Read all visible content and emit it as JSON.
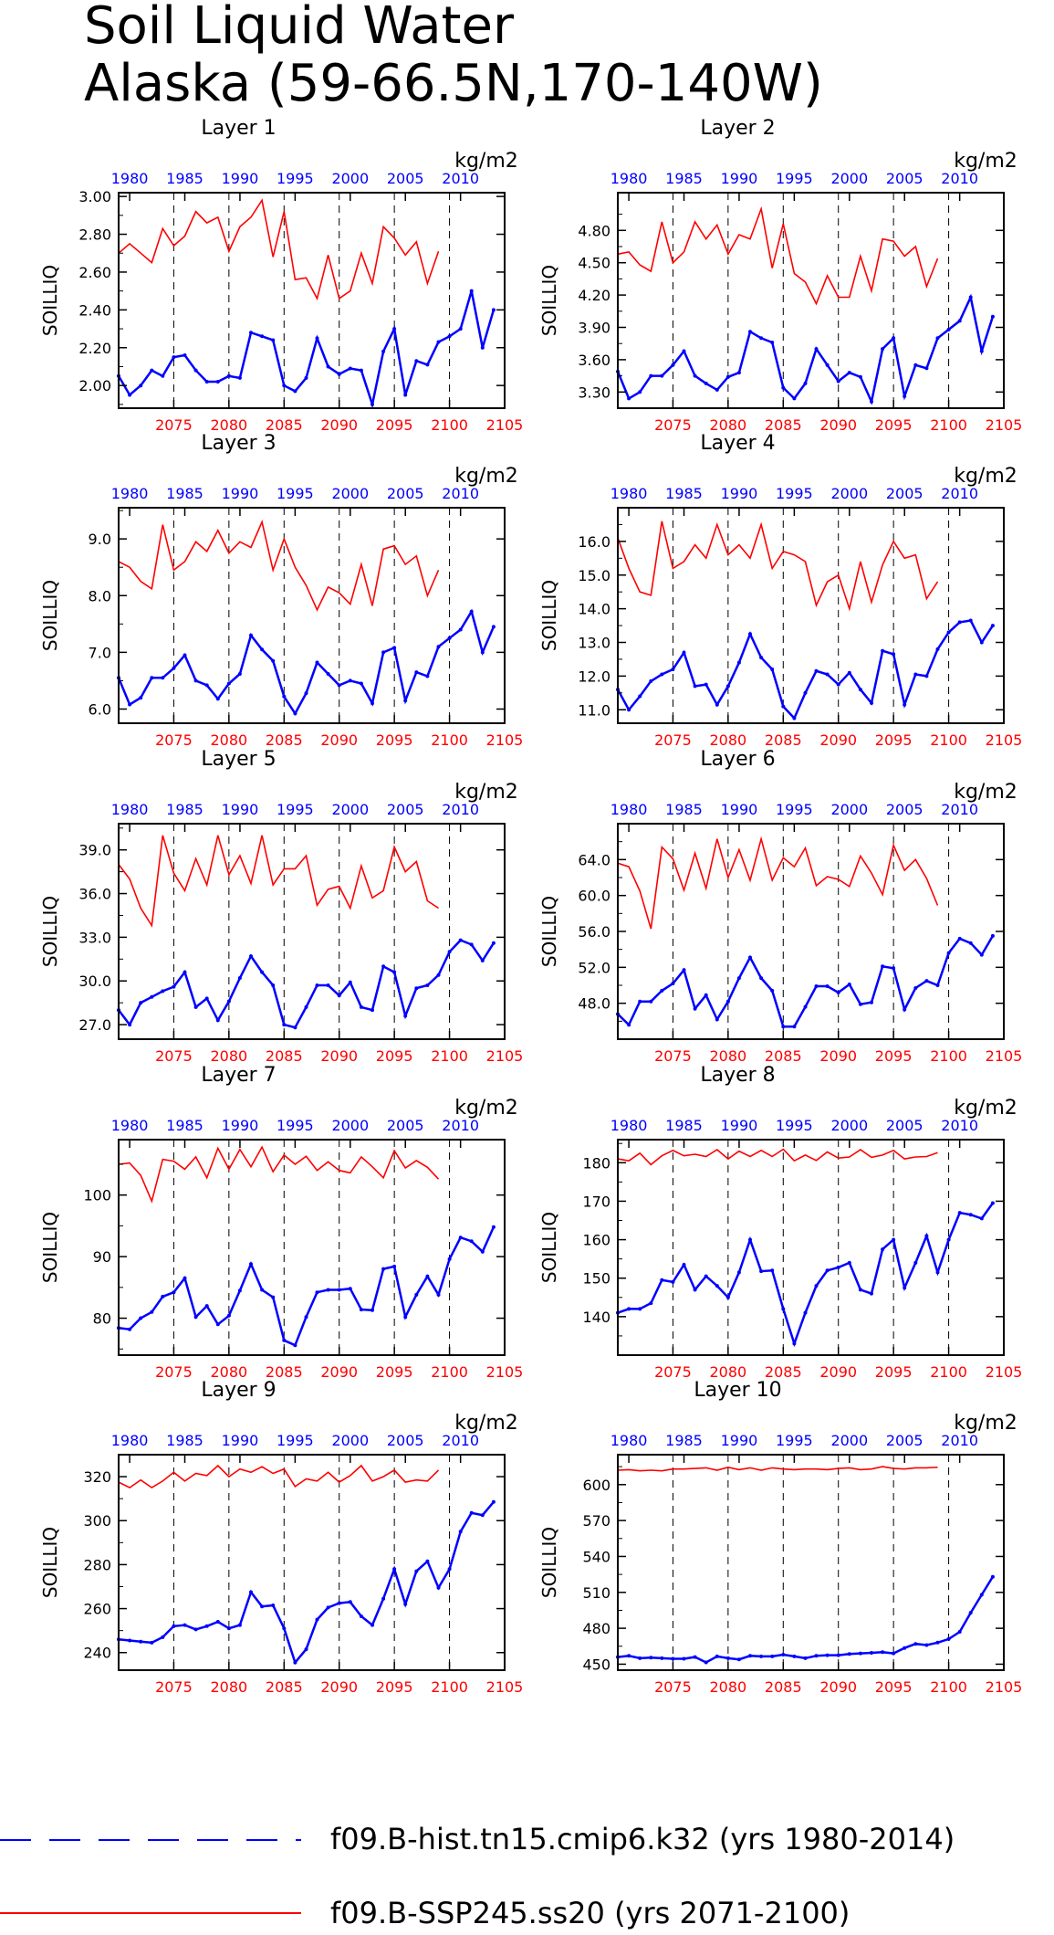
{
  "title": [
    "Soil Liquid Water",
    "Alaska (59-66.5N,170-140W)"
  ],
  "units": "kg/m2",
  "ylabel": "SOILLIQ",
  "colors": {
    "hist": "#0000ff",
    "ssp": "#ff0000",
    "frame": "#000000"
  },
  "top_axis": {
    "range": [
      1979,
      2014
    ],
    "ticks": [
      1980,
      1985,
      1990,
      1995,
      2000,
      2005,
      2010
    ]
  },
  "bottom_axis": {
    "range": [
      2070,
      2105
    ],
    "ticks": [
      2075,
      2080,
      2085,
      2090,
      2095,
      2100,
      2105
    ]
  },
  "legend": [
    {
      "series": "hist",
      "label": "f09.B-hist.tn15.cmip6.k32 (yrs 1980-2014)"
    },
    {
      "series": "ssp",
      "label": "f09.B-SSP245.ss20 (yrs 2071-2100)"
    }
  ],
  "chart_data": [
    {
      "type": "line",
      "title": "Layer 1",
      "ylabel": "SOILLIQ",
      "ylim": [
        1.88,
        3.02
      ],
      "yticks": [
        2.0,
        2.2,
        2.4,
        2.6,
        2.8,
        3.0
      ],
      "yfmt": 2,
      "series": [
        {
          "name": "f09.B-hist.tn15.cmip6.k32 (yrs 1980-2014)",
          "x_axis": "top",
          "x_start": 1979,
          "values": [
            2.05,
            1.95,
            2.0,
            2.08,
            2.05,
            2.15,
            2.16,
            2.08,
            2.02,
            2.02,
            2.05,
            2.04,
            2.28,
            2.26,
            2.24,
            2.0,
            1.97,
            2.04,
            2.25,
            2.1,
            2.06,
            2.09,
            2.08,
            1.9,
            2.18,
            2.3,
            1.95,
            2.13,
            2.11,
            2.23,
            2.26,
            2.3,
            2.5,
            2.2,
            2.4
          ]
        },
        {
          "name": "f09.B-SSP245.ss20 (yrs 2071-2100)",
          "x_axis": "bottom",
          "x_start": 2070,
          "values": [
            2.7,
            2.75,
            2.7,
            2.65,
            2.83,
            2.74,
            2.79,
            2.92,
            2.86,
            2.89,
            2.71,
            2.84,
            2.89,
            2.98,
            2.68,
            2.92,
            2.56,
            2.57,
            2.46,
            2.69,
            2.46,
            2.5,
            2.7,
            2.54,
            2.84,
            2.78,
            2.69,
            2.76,
            2.54,
            2.71
          ]
        }
      ]
    },
    {
      "type": "line",
      "title": "Layer 2",
      "ylabel": "SOILLIQ",
      "ylim": [
        3.15,
        5.15
      ],
      "yticks": [
        3.3,
        3.6,
        3.9,
        4.2,
        4.5,
        4.8
      ],
      "yfmt": 2,
      "series": [
        {
          "name": "f09.B-hist.tn15.cmip6.k32 (yrs 1980-2014)",
          "x_axis": "top",
          "x_start": 1979,
          "values": [
            3.49,
            3.24,
            3.3,
            3.45,
            3.45,
            3.55,
            3.68,
            3.45,
            3.38,
            3.32,
            3.44,
            3.48,
            3.86,
            3.8,
            3.76,
            3.34,
            3.24,
            3.38,
            3.7,
            3.55,
            3.4,
            3.48,
            3.44,
            3.21,
            3.7,
            3.8,
            3.26,
            3.55,
            3.52,
            3.8,
            3.88,
            3.96,
            4.18,
            3.68,
            4.0
          ]
        },
        {
          "name": "f09.B-SSP245.ss20 (yrs 2071-2100)",
          "x_axis": "bottom",
          "x_start": 2070,
          "values": [
            4.58,
            4.6,
            4.48,
            4.42,
            4.88,
            4.5,
            4.6,
            4.88,
            4.72,
            4.85,
            4.58,
            4.76,
            4.72,
            5.0,
            4.45,
            4.86,
            4.4,
            4.32,
            4.12,
            4.38,
            4.18,
            4.18,
            4.56,
            4.24,
            4.72,
            4.7,
            4.56,
            4.65,
            4.28,
            4.54
          ]
        }
      ]
    },
    {
      "type": "line",
      "title": "Layer 3",
      "ylabel": "SOILLIQ",
      "ylim": [
        5.75,
        9.55
      ],
      "yticks": [
        6.0,
        7.0,
        8.0,
        9.0
      ],
      "yfmt": 1,
      "series": [
        {
          "name": "f09.B-hist.tn15.cmip6.k32 (yrs 1980-2014)",
          "x_axis": "top",
          "x_start": 1979,
          "values": [
            6.55,
            6.08,
            6.2,
            6.55,
            6.55,
            6.72,
            6.95,
            6.5,
            6.42,
            6.18,
            6.45,
            6.62,
            7.3,
            7.05,
            6.85,
            6.22,
            5.92,
            6.28,
            6.82,
            6.62,
            6.42,
            6.5,
            6.45,
            6.1,
            7.0,
            7.08,
            6.15,
            6.65,
            6.58,
            7.1,
            7.25,
            7.4,
            7.72,
            7.0,
            7.45
          ]
        },
        {
          "name": "f09.B-SSP245.ss20 (yrs 2071-2100)",
          "x_axis": "bottom",
          "x_start": 2070,
          "values": [
            8.6,
            8.5,
            8.25,
            8.12,
            9.25,
            8.45,
            8.6,
            8.95,
            8.78,
            9.15,
            8.75,
            8.95,
            8.85,
            9.3,
            8.45,
            9.0,
            8.5,
            8.18,
            7.75,
            8.15,
            8.05,
            7.85,
            8.55,
            7.82,
            8.82,
            8.88,
            8.55,
            8.7,
            8.0,
            8.45
          ]
        }
      ]
    },
    {
      "type": "line",
      "title": "Layer 4",
      "ylabel": "SOILLIQ",
      "ylim": [
        10.6,
        17.0
      ],
      "yticks": [
        11.0,
        12.0,
        13.0,
        14.0,
        15.0,
        16.0
      ],
      "yfmt": 1,
      "series": [
        {
          "name": "f09.B-hist.tn15.cmip6.k32 (yrs 1980-2014)",
          "x_axis": "top",
          "x_start": 1979,
          "values": [
            11.6,
            11.0,
            11.4,
            11.85,
            12.05,
            12.2,
            12.7,
            11.7,
            11.75,
            11.15,
            11.7,
            12.4,
            13.25,
            12.55,
            12.2,
            11.1,
            10.75,
            11.5,
            12.15,
            12.05,
            11.75,
            12.1,
            11.6,
            11.2,
            12.75,
            12.65,
            11.15,
            12.05,
            12.0,
            12.8,
            13.3,
            13.6,
            13.65,
            13.0,
            13.5
          ]
        },
        {
          "name": "f09.B-SSP245.ss20 (yrs 2071-2100)",
          "x_axis": "bottom",
          "x_start": 2070,
          "values": [
            16.1,
            15.2,
            14.5,
            14.4,
            16.6,
            15.2,
            15.4,
            15.9,
            15.5,
            16.5,
            15.6,
            15.9,
            15.5,
            16.5,
            15.2,
            15.7,
            15.6,
            15.4,
            14.1,
            14.8,
            15.0,
            14.0,
            15.4,
            14.2,
            15.3,
            16.0,
            15.5,
            15.6,
            14.3,
            14.8
          ]
        }
      ]
    },
    {
      "type": "line",
      "title": "Layer 5",
      "ylabel": "SOILLIQ",
      "ylim": [
        26.0,
        40.8
      ],
      "yticks": [
        27.0,
        30.0,
        33.0,
        36.0,
        39.0
      ],
      "yfmt": 1,
      "series": [
        {
          "name": "f09.B-hist.tn15.cmip6.k32 (yrs 1980-2014)",
          "x_axis": "top",
          "x_start": 1979,
          "values": [
            28.0,
            27.0,
            28.5,
            28.9,
            29.3,
            29.6,
            30.6,
            28.2,
            28.8,
            27.3,
            28.6,
            30.2,
            31.7,
            30.6,
            29.7,
            27.0,
            26.8,
            28.2,
            29.7,
            29.7,
            29.0,
            29.9,
            28.2,
            28.0,
            31.0,
            30.6,
            27.6,
            29.5,
            29.7,
            30.4,
            32.0,
            32.8,
            32.5,
            31.4,
            32.6
          ]
        },
        {
          "name": "f09.B-SSP245.ss20 (yrs 2071-2100)",
          "x_axis": "bottom",
          "x_start": 2070,
          "values": [
            38.0,
            37.0,
            35.0,
            33.8,
            40.0,
            37.4,
            36.2,
            38.4,
            36.6,
            40.0,
            37.3,
            38.6,
            36.7,
            40.0,
            36.6,
            37.7,
            37.7,
            38.6,
            35.2,
            36.3,
            36.5,
            35.0,
            37.9,
            35.7,
            36.2,
            39.2,
            37.5,
            38.2,
            35.5,
            35.0
          ]
        }
      ]
    },
    {
      "type": "line",
      "title": "Layer 6",
      "ylabel": "SOILLIQ",
      "ylim": [
        44.0,
        68.0
      ],
      "yticks": [
        48.0,
        52.0,
        56.0,
        60.0,
        64.0
      ],
      "yfmt": 1,
      "series": [
        {
          "name": "f09.B-hist.tn15.cmip6.k32 (yrs 1980-2014)",
          "x_axis": "top",
          "x_start": 1979,
          "values": [
            46.8,
            45.6,
            48.2,
            48.2,
            49.4,
            50.2,
            51.7,
            47.4,
            48.9,
            46.2,
            48.2,
            50.8,
            53.1,
            50.8,
            49.4,
            45.4,
            45.4,
            47.6,
            49.9,
            49.9,
            49.2,
            50.1,
            47.9,
            48.1,
            52.1,
            51.9,
            47.3,
            49.7,
            50.5,
            50.0,
            53.6,
            55.2,
            54.7,
            53.4,
            55.5
          ]
        },
        {
          "name": "f09.B-SSP245.ss20 (yrs 2071-2100)",
          "x_axis": "bottom",
          "x_start": 2070,
          "values": [
            63.6,
            63.2,
            60.5,
            56.3,
            65.4,
            64.1,
            60.6,
            64.7,
            60.8,
            66.3,
            62.0,
            65.1,
            61.7,
            66.3,
            61.7,
            64.2,
            63.2,
            65.3,
            61.1,
            62.1,
            61.8,
            61.0,
            64.4,
            62.5,
            60.1,
            65.6,
            62.8,
            64.0,
            61.9,
            58.9
          ]
        }
      ]
    },
    {
      "type": "line",
      "title": "Layer 7",
      "ylabel": "SOILLIQ",
      "ylim": [
        74.0,
        109.0
      ],
      "yticks": [
        80,
        90,
        100
      ],
      "yfmt": 0,
      "series": [
        {
          "name": "f09.B-hist.tn15.cmip6.k32 (yrs 1980-2014)",
          "x_axis": "top",
          "x_start": 1979,
          "values": [
            78.4,
            78.2,
            80.0,
            81.0,
            83.5,
            84.2,
            86.5,
            80.2,
            82.0,
            79.0,
            80.4,
            84.5,
            88.8,
            84.6,
            83.4,
            76.4,
            75.6,
            80.2,
            84.2,
            84.6,
            84.6,
            84.8,
            81.4,
            81.3,
            88.0,
            88.4,
            80.2,
            83.8,
            86.8,
            83.8,
            89.6,
            93.1,
            92.5,
            90.8,
            94.8
          ]
        },
        {
          "name": "f09.B-SSP245.ss20 (yrs 2071-2100)",
          "x_axis": "bottom",
          "x_start": 2070,
          "values": [
            105.0,
            105.2,
            103.2,
            99.0,
            105.8,
            105.5,
            104.2,
            106.2,
            102.8,
            107.6,
            104.2,
            107.4,
            104.6,
            107.8,
            103.8,
            106.5,
            105.0,
            106.3,
            104.0,
            105.4,
            104.0,
            103.6,
            106.2,
            104.6,
            102.8,
            107.2,
            104.4,
            105.6,
            104.5,
            102.6
          ]
        }
      ]
    },
    {
      "type": "line",
      "title": "Layer 8",
      "ylabel": "SOILLIQ",
      "ylim": [
        130.0,
        186.0
      ],
      "yticks": [
        140,
        150,
        160,
        170,
        180
      ],
      "yfmt": 0,
      "series": [
        {
          "name": "f09.B-hist.tn15.cmip6.k32 (yrs 1980-2014)",
          "x_axis": "top",
          "x_start": 1979,
          "values": [
            141.0,
            142.0,
            142.0,
            143.5,
            149.5,
            149.0,
            153.5,
            147.0,
            150.5,
            148.0,
            145.0,
            151.5,
            160.0,
            151.8,
            152.0,
            142.0,
            133.0,
            141.0,
            148.0,
            152.0,
            152.8,
            154.0,
            147.0,
            146.0,
            157.5,
            160.0,
            147.5,
            154.0,
            161.0,
            151.5,
            160.0,
            167.0,
            166.5,
            165.5,
            169.5
          ]
        },
        {
          "name": "f09.B-SSP245.ss20 (yrs 2071-2100)",
          "x_axis": "bottom",
          "x_start": 2070,
          "values": [
            181.0,
            180.5,
            182.5,
            179.5,
            181.8,
            183.2,
            181.8,
            182.2,
            181.6,
            183.4,
            181.0,
            183.0,
            181.6,
            183.2,
            181.6,
            183.5,
            180.5,
            182.0,
            180.6,
            182.8,
            181.2,
            181.5,
            183.4,
            181.4,
            182.0,
            183.2,
            181.0,
            181.5,
            181.6,
            182.6
          ]
        }
      ]
    },
    {
      "type": "line",
      "title": "Layer 9",
      "ylabel": "SOILLIQ",
      "ylim": [
        232.0,
        330.0
      ],
      "yticks": [
        240,
        260,
        280,
        300,
        320
      ],
      "yfmt": 0,
      "series": [
        {
          "name": "f09.B-hist.tn15.cmip6.k32 (yrs 1980-2014)",
          "x_axis": "top",
          "x_start": 1979,
          "values": [
            246.0,
            245.5,
            245.0,
            244.5,
            247.0,
            252.0,
            252.5,
            250.5,
            252.0,
            254.0,
            251.0,
            252.5,
            267.5,
            261.0,
            261.5,
            251.0,
            235.5,
            241.5,
            255.0,
            260.5,
            262.5,
            263.0,
            256.5,
            252.5,
            264.5,
            278.0,
            262.0,
            277.0,
            281.5,
            269.5,
            278.0,
            295.0,
            303.5,
            302.5,
            308.5
          ]
        },
        {
          "name": "f09.B-SSP245.ss20 (yrs 2071-2100)",
          "x_axis": "bottom",
          "x_start": 2070,
          "values": [
            317.5,
            315.0,
            318.5,
            315.0,
            318.0,
            322.0,
            318.0,
            321.5,
            320.5,
            325.0,
            320.0,
            323.5,
            322.0,
            324.5,
            321.5,
            323.5,
            315.5,
            319.0,
            318.0,
            322.0,
            317.5,
            320.5,
            325.0,
            318.0,
            320.0,
            323.0,
            317.5,
            318.5,
            318.0,
            323.0
          ]
        }
      ]
    },
    {
      "type": "line",
      "title": "Layer 10",
      "ylabel": "SOILLIQ",
      "ylim": [
        445.0,
        625.0
      ],
      "yticks": [
        450,
        480,
        510,
        540,
        570,
        600
      ],
      "yfmt": 0,
      "series": [
        {
          "name": "f09.B-hist.tn15.cmip6.k32 (yrs 1980-2014)",
          "x_axis": "top",
          "x_start": 1979,
          "values": [
            456.0,
            457.0,
            455.0,
            455.5,
            455.0,
            454.5,
            454.5,
            456.0,
            451.5,
            456.5,
            455.0,
            454.0,
            457.0,
            456.5,
            456.5,
            458.0,
            456.5,
            455.0,
            457.0,
            457.5,
            457.5,
            458.5,
            459.0,
            459.5,
            460.0,
            459.0,
            463.5,
            467.0,
            466.0,
            468.0,
            471.0,
            477.0,
            493.0,
            508.0,
            523.0
          ]
        },
        {
          "name": "f09.B-SSP245.ss20 (yrs 2071-2100)",
          "x_axis": "bottom",
          "x_start": 2070,
          "values": [
            612.0,
            612.5,
            611.5,
            612.0,
            611.5,
            613.0,
            613.0,
            613.5,
            614.0,
            612.0,
            614.5,
            612.5,
            614.0,
            612.0,
            614.0,
            613.0,
            612.5,
            613.0,
            613.0,
            612.5,
            613.5,
            614.0,
            612.5,
            613.0,
            615.0,
            613.5,
            613.0,
            614.0,
            614.0,
            614.5
          ]
        }
      ]
    }
  ]
}
